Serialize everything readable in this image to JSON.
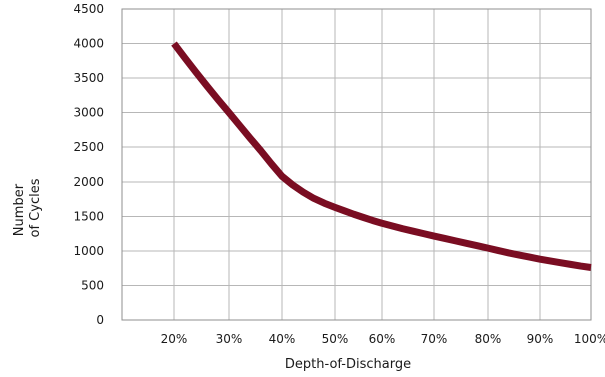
{
  "chart_data": {
    "type": "line",
    "title": "",
    "xlabel": "Depth-of-Discharge",
    "ylabel_lines": [
      "Number",
      "of Cycles"
    ],
    "x_ticks": [
      "20%",
      "30%",
      "40%",
      "50%",
      "60%",
      "70%",
      "80%",
      "90%",
      "100%"
    ],
    "y_ticks": [
      "0",
      "500",
      "1000",
      "1500",
      "2000",
      "2500",
      "3000",
      "3500",
      "4000",
      "4500"
    ],
    "ylim": [
      0,
      4500
    ],
    "grid": true,
    "legend": "none",
    "line_color": "#7a0d22",
    "series": [
      {
        "x": [
          20,
          22,
          24,
          26,
          28,
          30,
          32,
          34,
          36,
          38,
          40,
          42,
          44,
          46,
          48,
          50,
          52,
          54,
          56,
          58,
          60,
          62,
          64,
          66,
          68,
          70,
          72,
          74,
          76,
          78,
          80,
          82,
          84,
          86,
          88,
          90,
          92,
          94,
          96,
          98,
          100
        ],
        "y": [
          4000,
          3790,
          3585,
          3385,
          3190,
          3000,
          2815,
          2630,
          2450,
          2260,
          2080,
          1955,
          1850,
          1760,
          1690,
          1630,
          1580,
          1530,
          1485,
          1440,
          1400,
          1360,
          1320,
          1285,
          1250,
          1215,
          1180,
          1145,
          1110,
          1075,
          1040,
          1005,
          970,
          940,
          910,
          880,
          855,
          830,
          805,
          780,
          760
        ]
      }
    ]
  }
}
